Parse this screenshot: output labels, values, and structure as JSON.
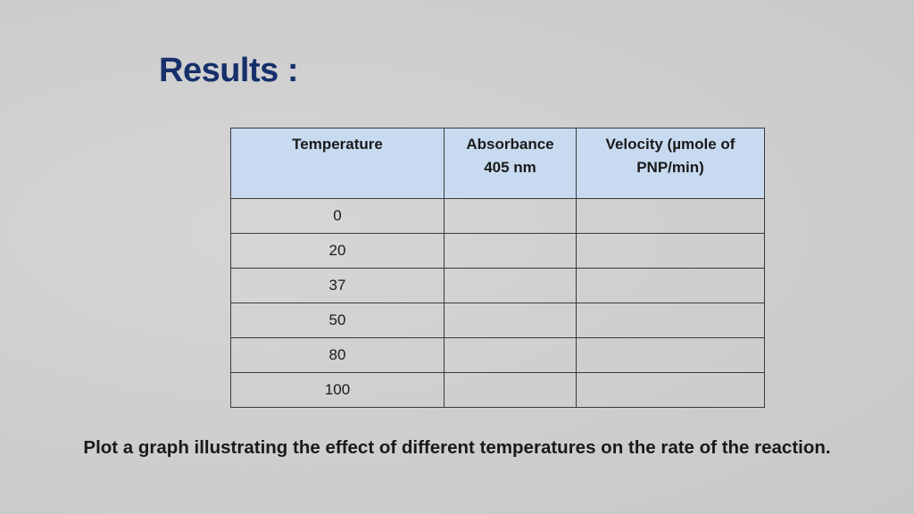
{
  "title": "Results :",
  "table": {
    "headers": {
      "temperature": "Temperature",
      "absorbance_line1": "Absorbance",
      "absorbance_line2": "405 nm",
      "velocity_line1": "Velocity (µmole of",
      "velocity_line2": "PNP/min)"
    },
    "rows": [
      {
        "temperature": "0",
        "absorbance": "",
        "velocity": ""
      },
      {
        "temperature": "20",
        "absorbance": "",
        "velocity": ""
      },
      {
        "temperature": "37",
        "absorbance": "",
        "velocity": ""
      },
      {
        "temperature": "50",
        "absorbance": "",
        "velocity": ""
      },
      {
        "temperature": "80",
        "absorbance": "",
        "velocity": ""
      },
      {
        "temperature": "100",
        "absorbance": "",
        "velocity": ""
      }
    ]
  },
  "instruction": "Plot a graph illustrating the effect of different temperatures on the rate of the reaction.",
  "colors": {
    "title": "#17306b",
    "header_fill": "#c7daf0",
    "background": "#cfcfcf"
  }
}
